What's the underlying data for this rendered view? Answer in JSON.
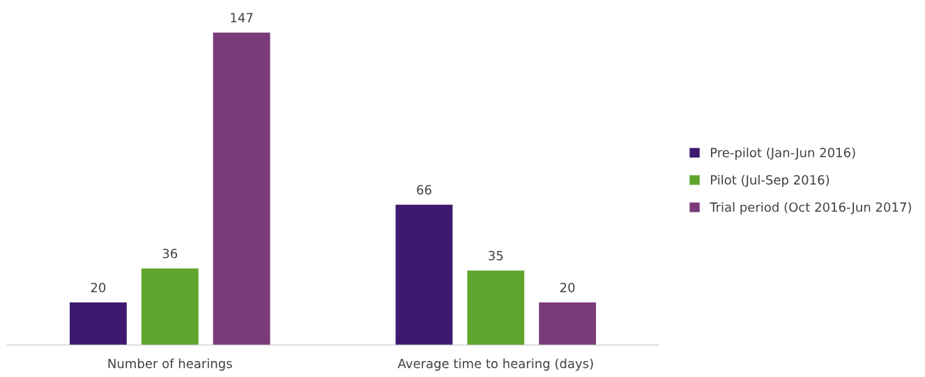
{
  "chart_data": {
    "type": "bar",
    "categories": [
      "Number of hearings",
      "Average time to hearing (days)"
    ],
    "series": [
      {
        "name": "Pre-pilot (Jan-Jun 2016)",
        "color": "#3d1a6e",
        "values": [
          20,
          66
        ]
      },
      {
        "name": "Pilot (Jul-Sep 2016)",
        "color": "#5fa52e",
        "values": [
          36,
          35
        ]
      },
      {
        "name": "Trial period (Oct 2016-Jun 2017)",
        "color": "#7a3b7a",
        "values": [
          147,
          20
        ]
      }
    ],
    "data_labels": true,
    "legend": "right"
  }
}
